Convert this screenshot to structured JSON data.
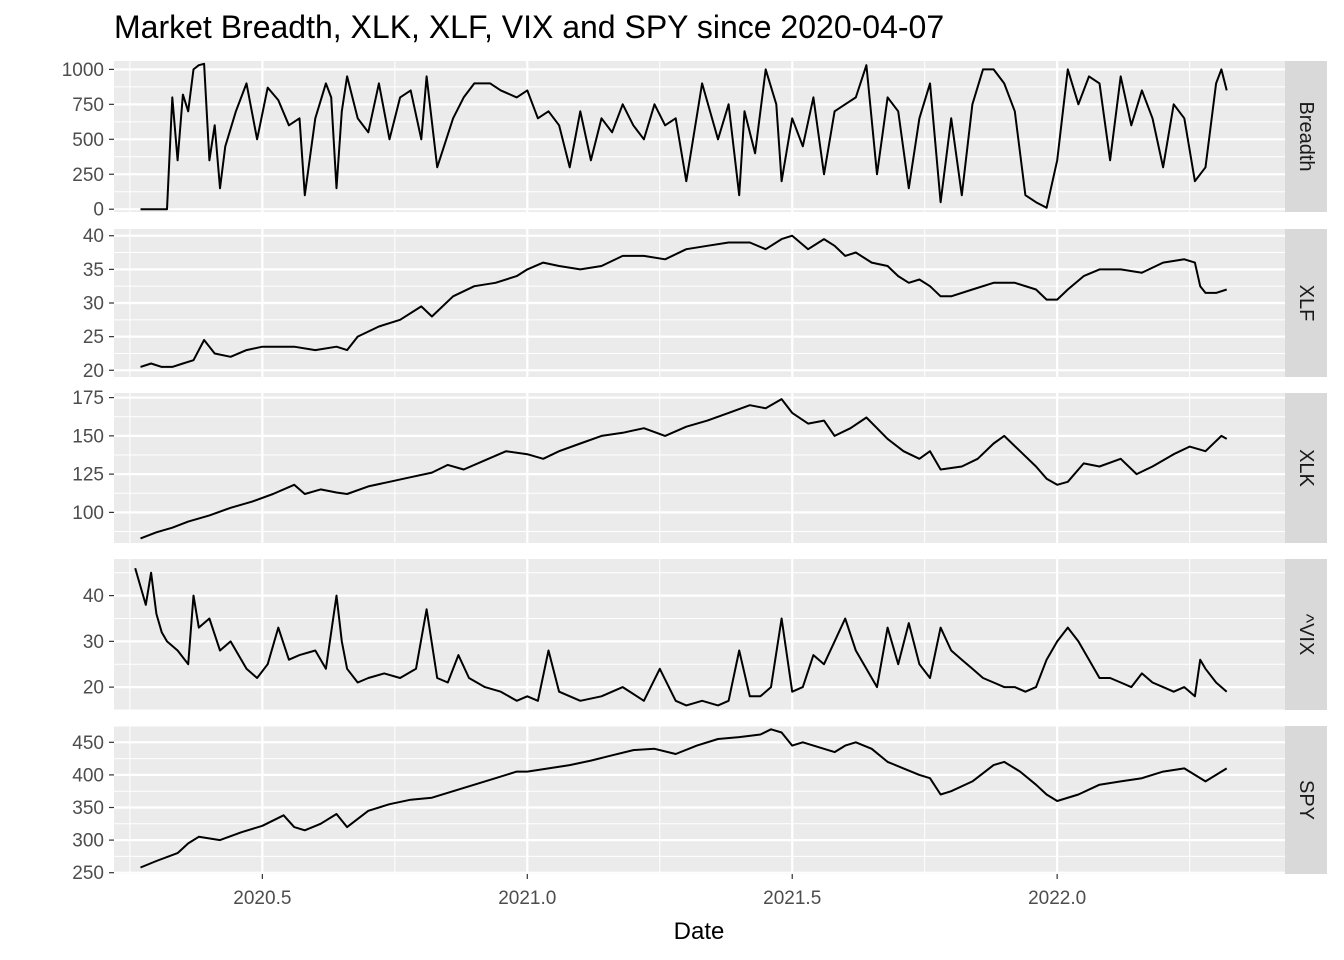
{
  "chart_data": {
    "type": "line",
    "title": "Market Breadth, XLK, XLF, VIX and SPY since 2020-04-07",
    "xlabel": "Date",
    "x_ticks": [
      "2020.5",
      "2021.0",
      "2021.5",
      "2022.0"
    ],
    "xlim": [
      2020.22,
      2022.43
    ],
    "grid": true,
    "panels": [
      {
        "strip": "Breadth",
        "ylim": [
          -20,
          1060
        ],
        "y_ticks": [
          "0",
          "250",
          "500",
          "750",
          "1000"
        ],
        "x": [
          2020.27,
          2020.29,
          2020.31,
          2020.32,
          2020.33,
          2020.34,
          2020.35,
          2020.36,
          2020.37,
          2020.38,
          2020.39,
          2020.4,
          2020.41,
          2020.42,
          2020.43,
          2020.45,
          2020.47,
          2020.49,
          2020.51,
          2020.53,
          2020.55,
          2020.57,
          2020.58,
          2020.6,
          2020.62,
          2020.63,
          2020.64,
          2020.65,
          2020.66,
          2020.68,
          2020.7,
          2020.72,
          2020.74,
          2020.76,
          2020.78,
          2020.8,
          2020.81,
          2020.83,
          2020.86,
          2020.88,
          2020.9,
          2020.93,
          2020.95,
          2020.98,
          2021.0,
          2021.02,
          2021.04,
          2021.06,
          2021.08,
          2021.1,
          2021.12,
          2021.14,
          2021.16,
          2021.18,
          2021.2,
          2021.22,
          2021.24,
          2021.26,
          2021.28,
          2021.3,
          2021.33,
          2021.36,
          2021.38,
          2021.4,
          2021.41,
          2021.43,
          2021.45,
          2021.47,
          2021.48,
          2021.5,
          2021.52,
          2021.54,
          2021.56,
          2021.58,
          2021.6,
          2021.62,
          2021.64,
          2021.66,
          2021.68,
          2021.7,
          2021.72,
          2021.74,
          2021.76,
          2021.78,
          2021.8,
          2021.82,
          2021.84,
          2021.86,
          2021.88,
          2021.9,
          2021.92,
          2021.94,
          2021.96,
          2021.98,
          2022.0,
          2022.02,
          2022.04,
          2022.06,
          2022.08,
          2022.1,
          2022.12,
          2022.14,
          2022.16,
          2022.18,
          2022.2,
          2022.22,
          2022.24,
          2022.26,
          2022.28,
          2022.3,
          2022.31,
          2022.32
        ],
        "y": [
          0,
          0,
          0,
          0,
          800,
          350,
          820,
          700,
          1000,
          1030,
          1040,
          350,
          600,
          150,
          450,
          700,
          900,
          500,
          870,
          780,
          600,
          650,
          100,
          650,
          900,
          800,
          150,
          700,
          950,
          650,
          550,
          900,
          500,
          800,
          850,
          500,
          950,
          300,
          650,
          800,
          900,
          900,
          850,
          800,
          850,
          650,
          700,
          600,
          300,
          700,
          350,
          650,
          550,
          750,
          600,
          500,
          750,
          600,
          650,
          200,
          900,
          500,
          750,
          100,
          700,
          400,
          1000,
          750,
          200,
          650,
          450,
          800,
          250,
          700,
          750,
          800,
          1030,
          250,
          800,
          700,
          150,
          650,
          900,
          50,
          650,
          100,
          750,
          1000,
          1000,
          900,
          700,
          100,
          50,
          10,
          350,
          1000,
          750,
          950,
          900,
          350,
          950,
          600,
          850,
          650,
          300,
          750,
          650,
          200,
          300,
          900,
          1000,
          850
        ]
      },
      {
        "strip": "XLF",
        "ylim": [
          19,
          41
        ],
        "y_ticks": [
          "20",
          "25",
          "30",
          "35",
          "40"
        ],
        "x": [
          2020.27,
          2020.29,
          2020.31,
          2020.33,
          2020.35,
          2020.37,
          2020.39,
          2020.41,
          2020.44,
          2020.47,
          2020.5,
          2020.53,
          2020.56,
          2020.6,
          2020.64,
          2020.66,
          2020.68,
          2020.72,
          2020.76,
          2020.8,
          2020.82,
          2020.86,
          2020.9,
          2020.94,
          2020.98,
          2021.0,
          2021.03,
          2021.06,
          2021.1,
          2021.14,
          2021.18,
          2021.22,
          2021.26,
          2021.3,
          2021.34,
          2021.38,
          2021.42,
          2021.45,
          2021.48,
          2021.5,
          2021.53,
          2021.56,
          2021.58,
          2021.6,
          2021.62,
          2021.65,
          2021.68,
          2021.7,
          2021.72,
          2021.74,
          2021.76,
          2021.78,
          2021.8,
          2021.84,
          2021.88,
          2021.92,
          2021.96,
          2021.98,
          2022.0,
          2022.02,
          2022.05,
          2022.08,
          2022.12,
          2022.16,
          2022.2,
          2022.24,
          2022.26,
          2022.27,
          2022.28,
          2022.3,
          2022.32
        ],
        "y": [
          20.5,
          21,
          20.5,
          20.5,
          21,
          21.5,
          24.5,
          22.5,
          22,
          23,
          23.5,
          23.5,
          23.5,
          23,
          23.5,
          23,
          25,
          26.5,
          27.5,
          29.5,
          28,
          31,
          32.5,
          33,
          34,
          35,
          36,
          35.5,
          35,
          35.5,
          37,
          37,
          36.5,
          38,
          38.5,
          39,
          39,
          38,
          39.5,
          40,
          38,
          39.5,
          38.5,
          37,
          37.5,
          36,
          35.5,
          34,
          33,
          33.5,
          32.5,
          31,
          31,
          32,
          33,
          33,
          32,
          30.5,
          30.5,
          32,
          34,
          35,
          35,
          34.5,
          36,
          36.5,
          36,
          32.5,
          31.5,
          31.5,
          32
        ]
      },
      {
        "strip": "XLK",
        "ylim": [
          80,
          178
        ],
        "y_ticks": [
          "100",
          "125",
          "150",
          "175"
        ],
        "x": [
          2020.27,
          2020.3,
          2020.33,
          2020.36,
          2020.4,
          2020.44,
          2020.48,
          2020.52,
          2020.56,
          2020.58,
          2020.61,
          2020.64,
          2020.66,
          2020.7,
          2020.74,
          2020.78,
          2020.82,
          2020.85,
          2020.88,
          2020.92,
          2020.96,
          2021.0,
          2021.03,
          2021.06,
          2021.1,
          2021.14,
          2021.18,
          2021.22,
          2021.26,
          2021.3,
          2021.34,
          2021.38,
          2021.42,
          2021.45,
          2021.48,
          2021.5,
          2021.53,
          2021.56,
          2021.58,
          2021.61,
          2021.64,
          2021.66,
          2021.68,
          2021.71,
          2021.74,
          2021.76,
          2021.78,
          2021.82,
          2021.85,
          2021.88,
          2021.9,
          2021.93,
          2021.96,
          2021.98,
          2022.0,
          2022.02,
          2022.05,
          2022.08,
          2022.12,
          2022.15,
          2022.18,
          2022.22,
          2022.25,
          2022.28,
          2022.31,
          2022.32
        ],
        "y": [
          83,
          87,
          90,
          94,
          98,
          103,
          107,
          112,
          118,
          112,
          115,
          113,
          112,
          117,
          120,
          123,
          126,
          131,
          128,
          134,
          140,
          138,
          135,
          140,
          145,
          150,
          152,
          155,
          150,
          156,
          160,
          165,
          170,
          168,
          174,
          165,
          158,
          160,
          150,
          155,
          162,
          155,
          148,
          140,
          135,
          140,
          128,
          130,
          135,
          145,
          150,
          140,
          130,
          122,
          118,
          120,
          132,
          130,
          135,
          125,
          130,
          138,
          143,
          140,
          150,
          148
        ]
      },
      {
        "strip": "^VIX",
        "ylim": [
          15,
          48
        ],
        "y_ticks": [
          "20",
          "30",
          "40"
        ],
        "x": [
          2020.26,
          2020.27,
          2020.28,
          2020.29,
          2020.3,
          2020.31,
          2020.32,
          2020.34,
          2020.36,
          2020.37,
          2020.38,
          2020.4,
          2020.42,
          2020.44,
          2020.47,
          2020.49,
          2020.51,
          2020.53,
          2020.55,
          2020.57,
          2020.6,
          2020.62,
          2020.64,
          2020.65,
          2020.66,
          2020.68,
          2020.7,
          2020.73,
          2020.76,
          2020.79,
          2020.81,
          2020.83,
          2020.85,
          2020.87,
          2020.89,
          2020.92,
          2020.95,
          2020.98,
          2021.0,
          2021.02,
          2021.04,
          2021.06,
          2021.1,
          2021.14,
          2021.18,
          2021.22,
          2021.25,
          2021.28,
          2021.3,
          2021.33,
          2021.36,
          2021.38,
          2021.4,
          2021.42,
          2021.44,
          2021.46,
          2021.48,
          2021.5,
          2021.52,
          2021.54,
          2021.56,
          2021.58,
          2021.6,
          2021.62,
          2021.64,
          2021.66,
          2021.68,
          2021.7,
          2021.72,
          2021.74,
          2021.76,
          2021.78,
          2021.8,
          2021.82,
          2021.84,
          2021.86,
          2021.88,
          2021.9,
          2021.92,
          2021.94,
          2021.96,
          2021.98,
          2022.0,
          2022.02,
          2022.04,
          2022.06,
          2022.08,
          2022.1,
          2022.12,
          2022.14,
          2022.16,
          2022.18,
          2022.2,
          2022.22,
          2022.24,
          2022.26,
          2022.27,
          2022.28,
          2022.3,
          2022.32
        ],
        "y": [
          46,
          42,
          38,
          45,
          36,
          32,
          30,
          28,
          25,
          40,
          33,
          35,
          28,
          30,
          24,
          22,
          25,
          33,
          26,
          27,
          28,
          24,
          40,
          30,
          24,
          21,
          22,
          23,
          22,
          24,
          37,
          22,
          21,
          27,
          22,
          20,
          19,
          17,
          18,
          17,
          28,
          19,
          17,
          18,
          20,
          17,
          24,
          17,
          16,
          17,
          16,
          17,
          28,
          18,
          18,
          20,
          35,
          19,
          20,
          27,
          25,
          30,
          35,
          28,
          24,
          20,
          33,
          25,
          34,
          25,
          22,
          33,
          28,
          26,
          24,
          22,
          21,
          20,
          20,
          19,
          20,
          26,
          30,
          33,
          30,
          26,
          22,
          22,
          21,
          20,
          23,
          21,
          20,
          19,
          20,
          18,
          26,
          24,
          21,
          19
        ]
      },
      {
        "strip": "SPY",
        "ylim": [
          248,
          475
        ],
        "y_ticks": [
          "250",
          "300",
          "350",
          "400",
          "450"
        ],
        "x": [
          2020.27,
          2020.3,
          2020.34,
          2020.36,
          2020.38,
          2020.42,
          2020.46,
          2020.5,
          2020.54,
          2020.56,
          2020.58,
          2020.61,
          2020.64,
          2020.66,
          2020.7,
          2020.74,
          2020.78,
          2020.82,
          2020.86,
          2020.9,
          2020.94,
          2020.98,
          2021.0,
          2021.04,
          2021.08,
          2021.12,
          2021.16,
          2021.2,
          2021.24,
          2021.28,
          2021.32,
          2021.36,
          2021.4,
          2021.44,
          2021.46,
          2021.48,
          2021.5,
          2021.52,
          2021.56,
          2021.58,
          2021.6,
          2021.62,
          2021.65,
          2021.68,
          2021.71,
          2021.74,
          2021.76,
          2021.78,
          2021.8,
          2021.84,
          2021.88,
          2021.9,
          2021.93,
          2021.96,
          2021.98,
          2022.0,
          2022.04,
          2022.08,
          2022.12,
          2022.16,
          2022.2,
          2022.24,
          2022.28,
          2022.3,
          2022.32
        ],
        "y": [
          258,
          268,
          280,
          295,
          305,
          300,
          312,
          322,
          338,
          320,
          315,
          325,
          340,
          320,
          345,
          355,
          362,
          365,
          375,
          385,
          395,
          405,
          405,
          410,
          415,
          422,
          430,
          438,
          440,
          432,
          445,
          455,
          458,
          462,
          470,
          465,
          445,
          450,
          440,
          435,
          445,
          450,
          440,
          420,
          410,
          400,
          395,
          370,
          375,
          390,
          415,
          420,
          405,
          385,
          370,
          360,
          370,
          385,
          390,
          395,
          405,
          410,
          390,
          400,
          410
        ]
      }
    ]
  }
}
